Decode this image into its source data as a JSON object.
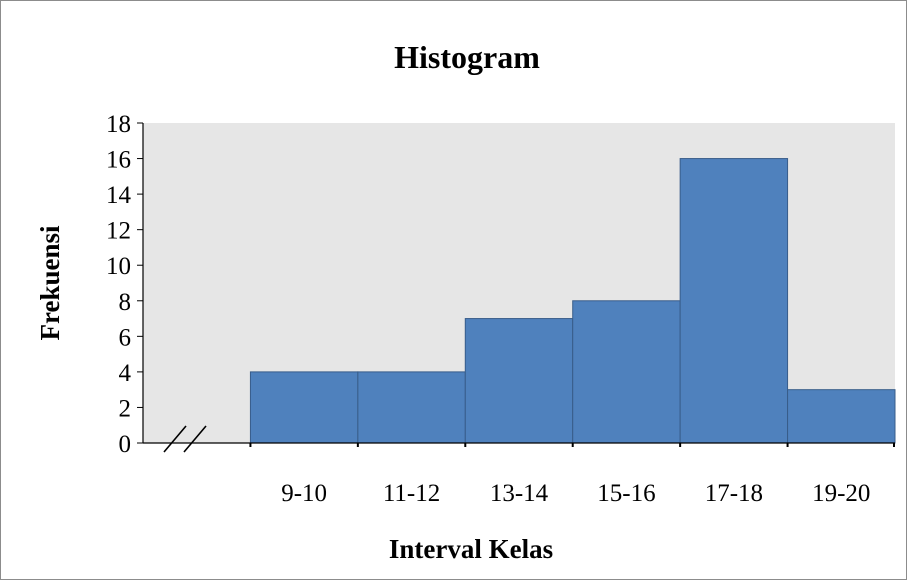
{
  "chart_data": {
    "type": "bar",
    "title": "Histogram",
    "xlabel": "Interval Kelas",
    "ylabel": "Frekuensi",
    "categories": [
      "",
      "9-10",
      "11-12",
      "13-14",
      "15-16",
      "17-18",
      "19-20"
    ],
    "values": [
      0,
      4,
      4,
      7,
      8,
      16,
      3
    ],
    "ylim": [
      0,
      18
    ],
    "yticks": [
      0,
      2,
      4,
      6,
      8,
      10,
      12,
      14,
      16,
      18
    ],
    "axis_break": true,
    "grid": false,
    "colors": {
      "bar": "#4f81bd",
      "bar_border": "#385d8a",
      "plot_bg": "#e6e6e6",
      "axis": "#000000"
    }
  }
}
